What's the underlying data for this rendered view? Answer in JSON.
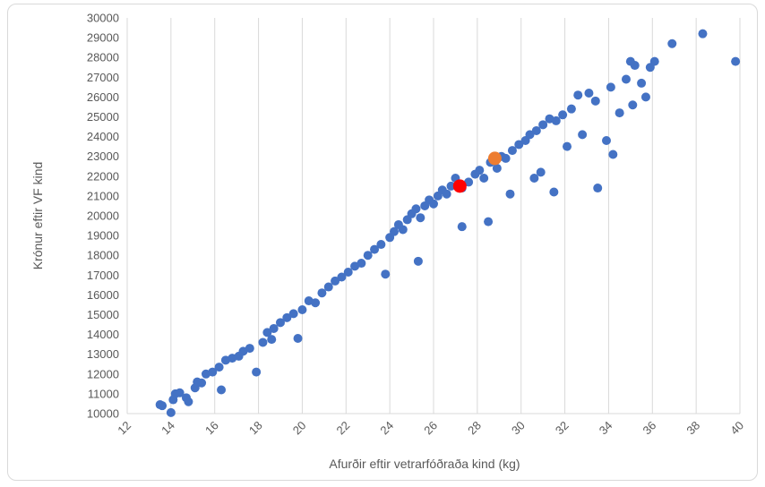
{
  "chart_data": {
    "type": "scatter",
    "xlabel": "Afurðir eftir vetrarfóðraða kind (kg)",
    "ylabel": "Krónur eftir VF kind",
    "xlim": [
      12,
      40
    ],
    "ylim": [
      10000,
      30000
    ],
    "x_ticks": [
      "12",
      "14",
      "16",
      "18",
      "20",
      "22",
      "24",
      "26",
      "28",
      "30",
      "32",
      "34",
      "36",
      "38",
      "40"
    ],
    "y_ticks": [
      "10000",
      "11000",
      "12000",
      "13000",
      "14000",
      "15000",
      "16000",
      "17000",
      "18000",
      "19000",
      "20000",
      "21000",
      "22000",
      "23000",
      "24000",
      "25000",
      "26000",
      "27000",
      "28000",
      "29000",
      "30000"
    ],
    "grid": "vertical",
    "series": [
      {
        "color": "#4472c4",
        "marker_role": "farms",
        "points": [
          [
            13.5,
            10450
          ],
          [
            13.6,
            10400
          ],
          [
            14.0,
            10050
          ],
          [
            14.1,
            10700
          ],
          [
            14.2,
            11000
          ],
          [
            14.4,
            11050
          ],
          [
            14.7,
            10800
          ],
          [
            14.8,
            10600
          ],
          [
            15.1,
            11300
          ],
          [
            15.2,
            11600
          ],
          [
            15.4,
            11550
          ],
          [
            15.6,
            12000
          ],
          [
            15.9,
            12100
          ],
          [
            16.2,
            12350
          ],
          [
            16.3,
            11200
          ],
          [
            16.5,
            12700
          ],
          [
            16.8,
            12800
          ],
          [
            17.1,
            12900
          ],
          [
            17.3,
            13150
          ],
          [
            17.6,
            13300
          ],
          [
            17.9,
            12100
          ],
          [
            18.2,
            13600
          ],
          [
            18.4,
            14100
          ],
          [
            18.7,
            14300
          ],
          [
            18.6,
            13750
          ],
          [
            19.0,
            14600
          ],
          [
            19.3,
            14850
          ],
          [
            19.6,
            15050
          ],
          [
            19.8,
            13800
          ],
          [
            20.0,
            15250
          ],
          [
            20.3,
            15700
          ],
          [
            20.6,
            15600
          ],
          [
            20.9,
            16100
          ],
          [
            21.2,
            16400
          ],
          [
            21.5,
            16700
          ],
          [
            21.8,
            16900
          ],
          [
            22.1,
            17150
          ],
          [
            22.4,
            17450
          ],
          [
            22.7,
            17600
          ],
          [
            23.0,
            18000
          ],
          [
            23.3,
            18300
          ],
          [
            23.6,
            18550
          ],
          [
            23.8,
            17050
          ],
          [
            24.0,
            18900
          ],
          [
            24.2,
            19200
          ],
          [
            24.4,
            19550
          ],
          [
            24.6,
            19300
          ],
          [
            24.8,
            19800
          ],
          [
            25.0,
            20100
          ],
          [
            25.2,
            20350
          ],
          [
            25.4,
            19900
          ],
          [
            25.3,
            17700
          ],
          [
            25.6,
            20500
          ],
          [
            25.8,
            20800
          ],
          [
            26.0,
            20600
          ],
          [
            26.2,
            21000
          ],
          [
            26.4,
            21300
          ],
          [
            26.6,
            21100
          ],
          [
            26.8,
            21500
          ],
          [
            27.0,
            21900
          ],
          [
            27.3,
            21400
          ],
          [
            27.3,
            19450
          ],
          [
            27.6,
            21700
          ],
          [
            27.9,
            22100
          ],
          [
            28.1,
            22300
          ],
          [
            28.3,
            21900
          ],
          [
            28.5,
            19700
          ],
          [
            28.6,
            22700
          ],
          [
            28.9,
            22400
          ],
          [
            29.1,
            23000
          ],
          [
            29.3,
            22900
          ],
          [
            29.5,
            21100
          ],
          [
            29.6,
            23300
          ],
          [
            29.9,
            23600
          ],
          [
            30.2,
            23800
          ],
          [
            30.4,
            24100
          ],
          [
            30.6,
            21900
          ],
          [
            30.7,
            24300
          ],
          [
            30.9,
            22200
          ],
          [
            31.0,
            24600
          ],
          [
            31.3,
            24900
          ],
          [
            31.6,
            24800
          ],
          [
            31.5,
            21200
          ],
          [
            31.9,
            25100
          ],
          [
            32.1,
            23500
          ],
          [
            32.3,
            25400
          ],
          [
            32.6,
            26100
          ],
          [
            32.8,
            24100
          ],
          [
            33.1,
            26200
          ],
          [
            33.4,
            25800
          ],
          [
            33.5,
            21400
          ],
          [
            33.9,
            23800
          ],
          [
            34.1,
            26500
          ],
          [
            34.2,
            23100
          ],
          [
            34.5,
            25200
          ],
          [
            34.8,
            26900
          ],
          [
            35.0,
            27800
          ],
          [
            35.1,
            25600
          ],
          [
            35.2,
            27600
          ],
          [
            35.5,
            26700
          ],
          [
            35.7,
            26000
          ],
          [
            35.9,
            27500
          ],
          [
            36.1,
            27800
          ],
          [
            36.9,
            28700
          ],
          [
            38.3,
            29200
          ],
          [
            39.8,
            27800
          ]
        ]
      },
      {
        "color": "#ff0000",
        "marker_role": "highlight-1",
        "points": [
          [
            27.2,
            21500
          ]
        ]
      },
      {
        "color": "#ed7d31",
        "marker_role": "highlight-2",
        "points": [
          [
            28.8,
            22900
          ]
        ]
      }
    ]
  }
}
